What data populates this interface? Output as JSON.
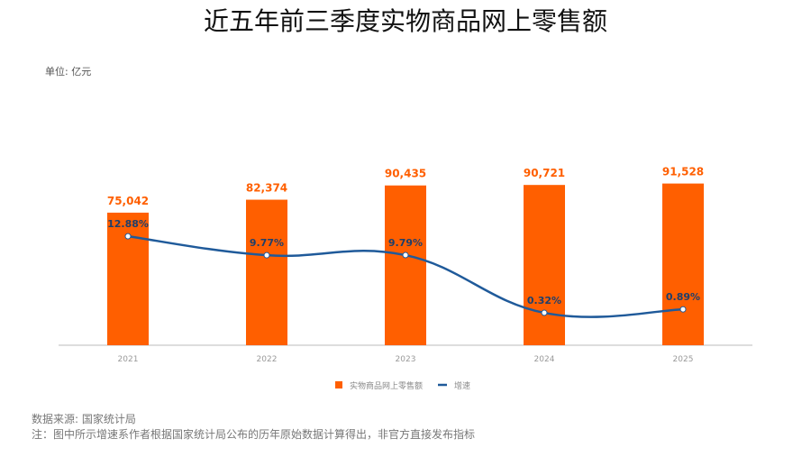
{
  "chart_data": {
    "type": "bar",
    "title": "近五年前三季度实物商品网上零售额",
    "unit_label": "单位: 亿元",
    "categories": [
      "2021",
      "2022",
      "2023",
      "2024",
      "2025"
    ],
    "series": [
      {
        "name": "实物商品网上零售额",
        "type": "bar",
        "values": [
          75042,
          82374,
          90435,
          90721,
          91528
        ],
        "labels": [
          "75,042",
          "82,374",
          "90,435",
          "90,721",
          "91,528"
        ],
        "color": "#ff5f00"
      },
      {
        "name": "增速",
        "type": "line",
        "values": [
          12.88,
          9.77,
          9.79,
          0.32,
          0.89
        ],
        "labels": [
          "12.88%",
          "9.77%",
          "9.79%",
          "0.32%",
          "0.89%"
        ],
        "color": "#1f5a9a"
      }
    ],
    "ylim": [
      0,
      150000
    ],
    "y2lim": [
      -5,
      38.5
    ],
    "legend": "bottom-center",
    "grid": false
  },
  "footer": {
    "source": "数据来源: 国家统计局",
    "note": "注：图中所示增速系作者根据国家统计局公布的历年原始数据计算得出，非官方直接发布指标"
  }
}
